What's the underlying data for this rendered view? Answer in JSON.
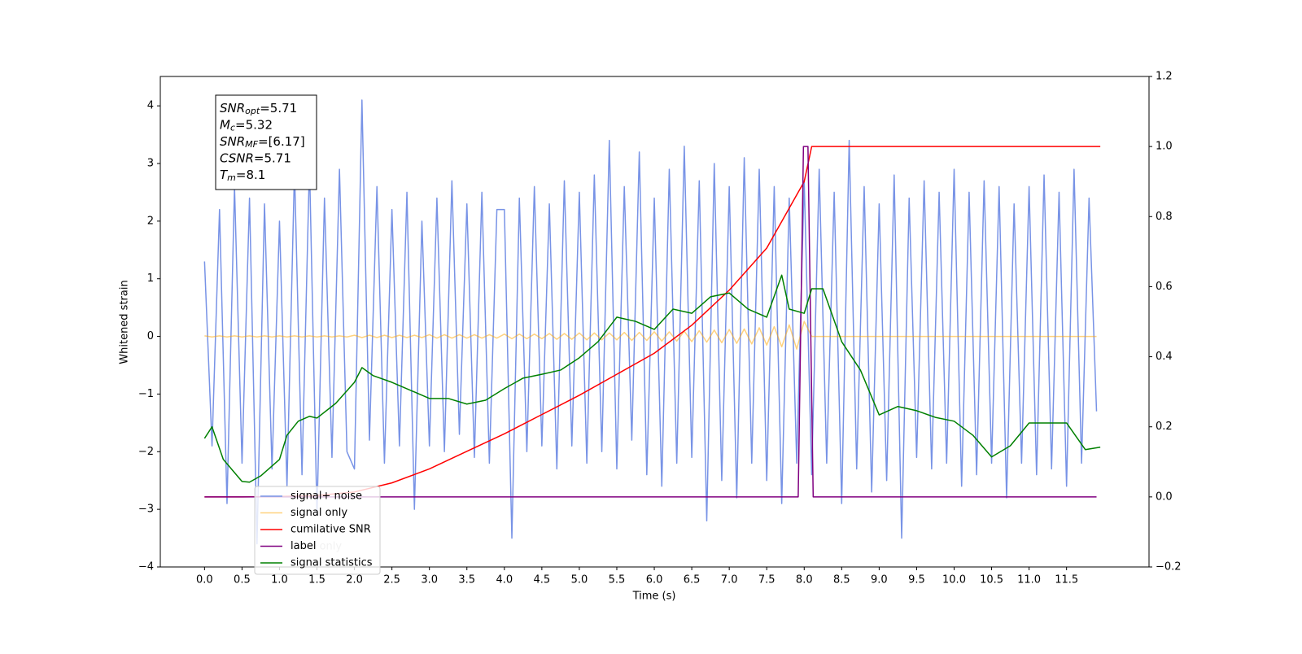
{
  "chart_data": {
    "type": "line",
    "xlabel": "Time (s)",
    "ylabel": "Whitened strain",
    "xlim": [
      -0.59,
      12.6
    ],
    "ylim": [
      -4.0,
      4.51
    ],
    "y2lim": [
      -0.2,
      1.2
    ],
    "xticks": [
      {
        "value": 0,
        "label": "0.0"
      },
      {
        "value": 0.5,
        "label": "0.5"
      },
      {
        "value": 1,
        "label": "1.0"
      },
      {
        "value": 1.5,
        "label": "1.5"
      },
      {
        "value": 2,
        "label": "2.0"
      },
      {
        "value": 2.5,
        "label": "2.5"
      },
      {
        "value": 3,
        "label": "3.0"
      },
      {
        "value": 3.5,
        "label": "3.5"
      },
      {
        "value": 4,
        "label": "4.0"
      },
      {
        "value": 4.5,
        "label": "4.5"
      },
      {
        "value": 5,
        "label": "5.0"
      },
      {
        "value": 5.5,
        "label": "5.5"
      },
      {
        "value": 6,
        "label": "6.0"
      },
      {
        "value": 6.5,
        "label": "6.5"
      },
      {
        "value": 7,
        "label": "7.0"
      },
      {
        "value": 7.5,
        "label": "7.5"
      },
      {
        "value": 8,
        "label": "8.0"
      },
      {
        "value": 8.5,
        "label": "8.5"
      },
      {
        "value": 9,
        "label": "9.0"
      },
      {
        "value": 9.5,
        "label": "9.5"
      },
      {
        "value": 10,
        "label": "10.0"
      },
      {
        "value": 10.5,
        "label": "10.5"
      },
      {
        "value": 11,
        "label": "11.0"
      },
      {
        "value": 11.5,
        "label": "11.5"
      }
    ],
    "yticks": [
      {
        "value": -4,
        "label": "−4"
      },
      {
        "value": -3,
        "label": "−3"
      },
      {
        "value": -2,
        "label": "−2"
      },
      {
        "value": -1,
        "label": "−1"
      },
      0,
      1,
      2,
      3,
      4
    ],
    "y2ticks": [
      {
        "value": -0.2,
        "label": "−0.2"
      },
      {
        "value": 0,
        "label": "0.0"
      },
      0.2,
      0.4,
      0.6,
      0.8,
      {
        "value": 1,
        "label": "1.0"
      },
      1.2
    ],
    "annotation_box": [
      {
        "symbol": "SNR",
        "subscript": "opt",
        "text": "=5.71"
      },
      {
        "symbol": "M",
        "subscript": "c",
        "text": "=5.32"
      },
      {
        "symbol": "SNR",
        "subscript": "MF",
        "text": "=[6.17]"
      },
      {
        "symbol": "CSNR",
        "subscript": "",
        "text": "=5.71"
      },
      {
        "symbol": "T",
        "subscript": "m",
        "text": "=8.1"
      }
    ],
    "extra_legend_text": "label only",
    "x": [
      0,
      0.1,
      0.2,
      0.3,
      0.4,
      0.5,
      0.6,
      0.7,
      0.8,
      0.9,
      1,
      1.1,
      1.2,
      1.3,
      1.4,
      1.5,
      1.6,
      1.7,
      1.8,
      1.9,
      2,
      2.1,
      2.2,
      2.3,
      2.4,
      2.5,
      2.6,
      2.7,
      2.8,
      2.9,
      3,
      3.1,
      3.2,
      3.3,
      3.4,
      3.5,
      3.6,
      3.7,
      3.8,
      3.9,
      4,
      4.1,
      4.2,
      4.3,
      4.4,
      4.5,
      4.6,
      4.7,
      4.8,
      4.9,
      5,
      5.1,
      5.2,
      5.3,
      5.4,
      5.5,
      5.6,
      5.7,
      5.8,
      5.9,
      6,
      6.1,
      6.2,
      6.3,
      6.4,
      6.5,
      6.6,
      6.7,
      6.8,
      6.9,
      7,
      7.1,
      7.2,
      7.3,
      7.4,
      7.5,
      7.6,
      7.7,
      7.8,
      7.9,
      8,
      8.1,
      8.2,
      8.3,
      8.4,
      8.5,
      8.6,
      8.7,
      8.8,
      8.9,
      9,
      9.1,
      9.2,
      9.3,
      9.4,
      9.5,
      9.6,
      9.7,
      9.8,
      9.9,
      10,
      10.1,
      10.2,
      10.3,
      10.4,
      10.5,
      10.6,
      10.7,
      10.8,
      10.9,
      11,
      11.1,
      11.2,
      11.3,
      11.4,
      11.5,
      11.6,
      11.7,
      11.8,
      11.9
    ],
    "series": [
      {
        "name": "signal+ noise",
        "color": "#7893e6",
        "axis": "y",
        "values": [
          1.3,
          -1.9,
          2.2,
          -2.9,
          2.6,
          -2.2,
          2.4,
          -3.6,
          2.3,
          -2.3,
          2.0,
          -2.6,
          2.9,
          -2.4,
          3.0,
          -3.1,
          2.4,
          -2.1,
          2.9,
          -2.0,
          -2.3,
          4.1,
          -1.8,
          2.6,
          -2.2,
          2.2,
          -1.9,
          2.5,
          -3.0,
          2.0,
          -1.9,
          2.4,
          -2.0,
          2.7,
          -1.7,
          2.3,
          -2.1,
          2.5,
          -2.2,
          2.2,
          2.2,
          -3.5,
          2.4,
          -2.0,
          2.6,
          -1.9,
          2.3,
          -2.3,
          2.7,
          -1.9,
          2.5,
          -2.2,
          2.8,
          -2.0,
          3.4,
          -2.3,
          2.6,
          -1.8,
          3.2,
          -2.4,
          2.4,
          -2.6,
          2.9,
          -2.2,
          3.3,
          -2.1,
          2.7,
          -3.2,
          3.0,
          -2.5,
          2.6,
          -2.8,
          3.1,
          -2.2,
          2.9,
          -2.5,
          2.6,
          -2.9,
          2.4,
          -2.2,
          2.7,
          -2.4,
          2.9,
          -2.2,
          2.5,
          -2.9,
          3.4,
          -2.3,
          2.6,
          -2.7,
          2.3,
          -2.5,
          2.8,
          -3.5,
          2.4,
          -2.1,
          2.7,
          -2.3,
          2.5,
          -2.2,
          2.9,
          -2.6,
          2.5,
          -2.4,
          2.7,
          -2.2,
          2.6,
          -2.8,
          2.3,
          -2.2,
          2.6,
          -2.4,
          2.8,
          -2.3,
          2.5,
          -2.6,
          2.9,
          -2.2,
          2.4,
          -1.3
        ]
      },
      {
        "name": "signal only",
        "color": "#ffa500",
        "axis": "y",
        "values": [
          0.01,
          -0.01,
          0.01,
          -0.01,
          0.01,
          -0.01,
          0.01,
          -0.01,
          0.01,
          -0.01,
          0.01,
          -0.01,
          0.01,
          -0.01,
          0.01,
          -0.01,
          0.01,
          -0.01,
          0.01,
          -0.01,
          0.02,
          -0.02,
          0.02,
          -0.02,
          0.02,
          -0.02,
          0.02,
          -0.02,
          0.02,
          -0.02,
          0.03,
          -0.03,
          0.03,
          -0.03,
          0.03,
          -0.03,
          0.03,
          -0.03,
          0.03,
          -0.03,
          0.04,
          -0.04,
          0.04,
          -0.04,
          0.04,
          -0.04,
          0.05,
          -0.05,
          0.05,
          -0.05,
          0.06,
          -0.06,
          0.06,
          -0.06,
          0.06,
          -0.06,
          0.07,
          -0.07,
          0.07,
          -0.07,
          0.08,
          -0.08,
          0.08,
          -0.08,
          0.09,
          -0.09,
          0.1,
          -0.1,
          0.11,
          -0.11,
          0.12,
          -0.12,
          0.13,
          -0.13,
          0.15,
          -0.15,
          0.17,
          -0.18,
          0.2,
          -0.22,
          0.26,
          0,
          0,
          0,
          0,
          0,
          0,
          0,
          0,
          0,
          0,
          0,
          0,
          0,
          0,
          0,
          0,
          0,
          0,
          0,
          0,
          0,
          0,
          0,
          0,
          0,
          0,
          0,
          0,
          0,
          0,
          0,
          0,
          0,
          0,
          0,
          0,
          0,
          0,
          0
        ]
      },
      {
        "name": "cumilative SNR",
        "color": "#ff0000",
        "axis": "y2",
        "x": [
          0,
          0.5,
          1,
          1.5,
          2,
          2.5,
          3,
          3.5,
          4,
          4.5,
          5,
          5.5,
          6,
          6.5,
          7,
          7.5,
          8,
          8.1,
          11.95
        ],
        "values": [
          0,
          0,
          0.001,
          0.004,
          0.014,
          0.04,
          0.08,
          0.13,
          0.18,
          0.235,
          0.29,
          0.35,
          0.41,
          0.49,
          0.59,
          0.71,
          0.9,
          1,
          1
        ]
      },
      {
        "name": "label",
        "color": "#800080",
        "axis": "y2",
        "x": [
          0,
          7.92,
          7.99,
          8.05,
          8.12,
          11.9
        ],
        "values": [
          0,
          0,
          1,
          1,
          0,
          0
        ]
      },
      {
        "name": "signal statistics",
        "color": "#008000",
        "axis": "y2",
        "x": [
          0,
          0.1,
          0.25,
          0.5,
          0.6,
          0.75,
          1,
          1.1,
          1.25,
          1.4,
          1.5,
          1.75,
          2,
          2.1,
          2.25,
          2.5,
          2.75,
          3,
          3.25,
          3.5,
          3.75,
          4,
          4.25,
          4.5,
          4.75,
          5,
          5.25,
          5.5,
          5.75,
          6,
          6.25,
          6.5,
          6.75,
          7,
          7.25,
          7.5,
          7.7,
          7.8,
          8,
          8.1,
          8.25,
          8.5,
          8.75,
          9,
          9.25,
          9.5,
          9.75,
          10,
          10.25,
          10.5,
          10.75,
          11,
          11.25,
          11.5,
          11.75,
          11.95
        ],
        "values": [
          0.167,
          0.2,
          0.107,
          0.044,
          0.042,
          0.06,
          0.107,
          0.176,
          0.216,
          0.23,
          0.225,
          0.267,
          0.327,
          0.369,
          0.346,
          0.327,
          0.304,
          0.281,
          0.281,
          0.265,
          0.276,
          0.309,
          0.339,
          0.35,
          0.362,
          0.397,
          0.443,
          0.513,
          0.501,
          0.478,
          0.536,
          0.524,
          0.571,
          0.582,
          0.536,
          0.513,
          0.633,
          0.536,
          0.524,
          0.594,
          0.594,
          0.443,
          0.362,
          0.234,
          0.258,
          0.246,
          0.227,
          0.216,
          0.176,
          0.114,
          0.146,
          0.211,
          0.211,
          0.211,
          0.135,
          0.142
        ]
      }
    ]
  }
}
